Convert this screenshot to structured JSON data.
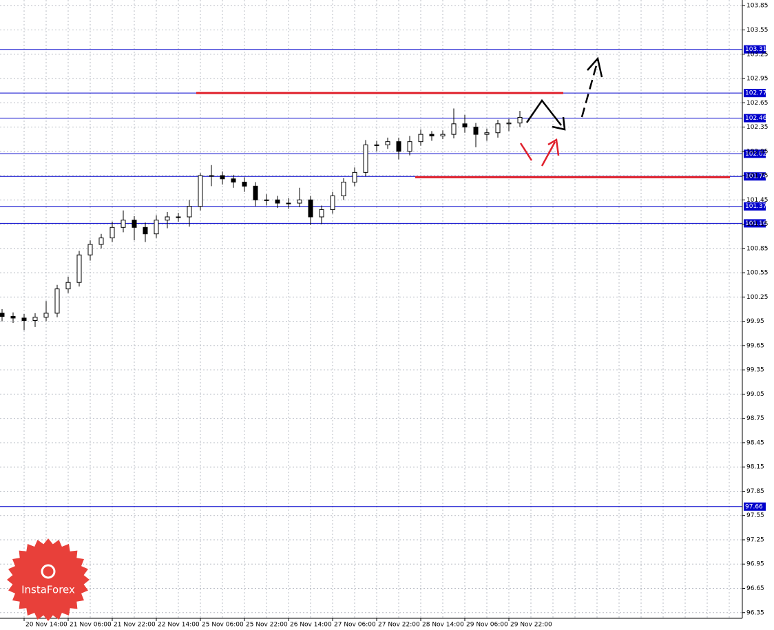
{
  "chart_data": {
    "type": "candlestick",
    "categories": [
      null,
      null,
      "20 Nov 14:00",
      null,
      null,
      null,
      "21 Nov 06:00",
      null,
      null,
      null,
      "21 Nov 22:00",
      null,
      null,
      null,
      "22 Nov 14:00",
      null,
      null,
      null,
      "25 Nov 06:00",
      null,
      null,
      null,
      "25 Nov 22:00",
      null,
      null,
      null,
      "26 Nov 14:00",
      null,
      null,
      null,
      "27 Nov 06:00",
      null,
      null,
      null,
      "27 Nov 22:00",
      null,
      null,
      null,
      "28 Nov 14:00",
      null,
      null,
      null,
      "29 Nov 06:00",
      null,
      null,
      null,
      "29 Nov 22:00",
      null
    ],
    "open": [
      100.05,
      100.01,
      99.99,
      99.96,
      100.0,
      100.05,
      100.35,
      100.43,
      100.77,
      100.9,
      100.98,
      101.11,
      101.2,
      101.11,
      101.03,
      101.2,
      101.24,
      101.24,
      101.37,
      101.75,
      101.75,
      101.71,
      101.67,
      101.62,
      101.45,
      101.45,
      101.41,
      101.41,
      101.45,
      101.24,
      101.33,
      101.5,
      101.67,
      101.79,
      102.13,
      102.13,
      102.17,
      102.05,
      102.17,
      102.26,
      102.24,
      102.26,
      102.39,
      102.35,
      102.26,
      102.28,
      102.39,
      102.4
    ],
    "high": [
      100.1,
      100.06,
      100.04,
      100.05,
      100.2,
      100.4,
      100.5,
      100.82,
      100.95,
      101.03,
      101.18,
      101.32,
      101.25,
      101.17,
      101.26,
      101.3,
      101.29,
      101.45,
      101.78,
      101.88,
      101.8,
      101.76,
      101.73,
      101.67,
      101.52,
      101.5,
      101.47,
      101.6,
      101.5,
      101.38,
      101.55,
      101.72,
      101.85,
      102.19,
      102.18,
      102.22,
      102.22,
      102.24,
      102.32,
      102.3,
      102.31,
      102.58,
      102.5,
      102.4,
      102.33,
      102.44,
      102.45,
      102.55
    ],
    "low": [
      99.95,
      99.93,
      99.84,
      99.88,
      99.95,
      100.0,
      100.3,
      100.38,
      100.7,
      100.85,
      100.93,
      101.05,
      100.95,
      100.93,
      100.98,
      101.1,
      101.18,
      101.12,
      101.32,
      101.62,
      101.64,
      101.6,
      101.55,
      101.37,
      101.38,
      101.35,
      101.34,
      101.36,
      101.14,
      101.15,
      101.28,
      101.45,
      101.62,
      101.74,
      102.05,
      102.08,
      101.95,
      102.0,
      102.12,
      102.18,
      102.2,
      102.21,
      102.28,
      102.1,
      102.18,
      102.22,
      102.3,
      102.35
    ],
    "close": [
      100.01,
      99.99,
      99.96,
      100.0,
      100.05,
      100.35,
      100.43,
      100.77,
      100.9,
      100.98,
      101.11,
      101.2,
      101.11,
      101.03,
      101.2,
      101.24,
      101.24,
      101.37,
      101.75,
      101.75,
      101.71,
      101.67,
      101.62,
      101.45,
      101.45,
      101.41,
      101.41,
      101.45,
      101.24,
      101.33,
      101.5,
      101.67,
      101.79,
      102.13,
      102.13,
      102.17,
      102.05,
      102.17,
      102.26,
      102.24,
      102.26,
      102.39,
      102.35,
      102.26,
      102.28,
      102.39,
      102.4,
      102.47
    ],
    "ylim": [
      96.28,
      103.92
    ],
    "yticks": [
      96.35,
      96.65,
      96.95,
      97.25,
      97.55,
      97.85,
      98.15,
      98.45,
      98.75,
      99.05,
      99.35,
      99.65,
      99.95,
      100.25,
      100.55,
      100.85,
      101.15,
      101.45,
      101.75,
      102.05,
      102.35,
      102.65,
      102.95,
      103.25,
      103.55,
      103.85
    ],
    "levels": [
      103.31,
      102.77,
      102.46,
      102.02,
      101.74,
      101.37,
      101.16,
      97.66
    ],
    "level_color": "#0000cc",
    "red_lines": [
      102.77,
      101.73
    ],
    "red_color": "#e0202c",
    "grid": true,
    "logo": "InstaForex"
  }
}
